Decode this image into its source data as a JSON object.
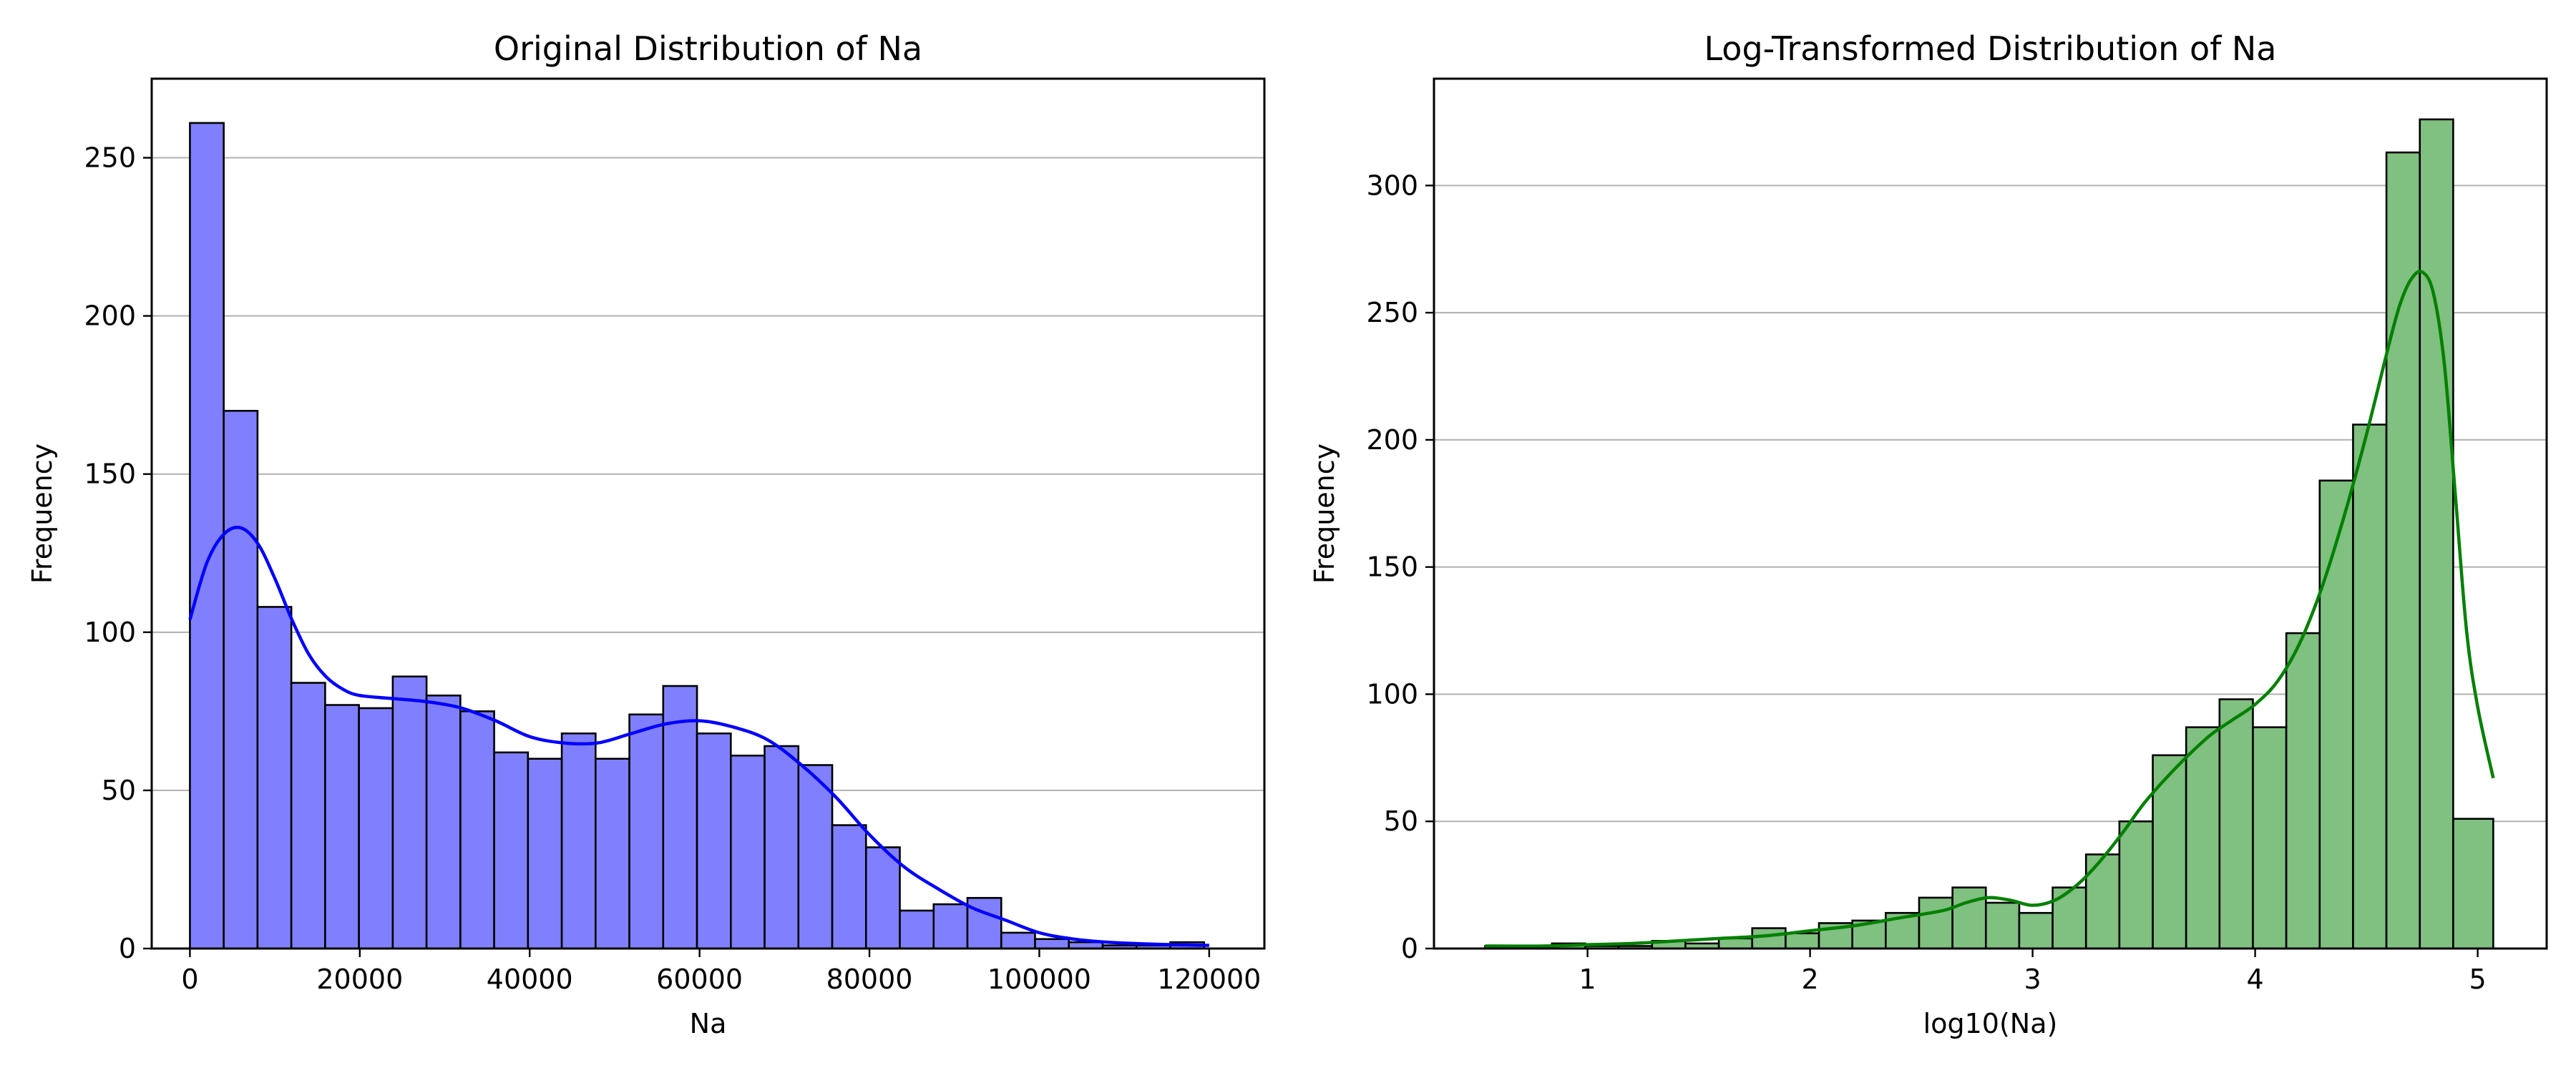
{
  "chart_data": [
    {
      "type": "bar",
      "title": "Original Distribution of Na",
      "xlabel": "Na",
      "ylabel": "Frequency",
      "xlim": [
        -4500,
        126500
      ],
      "ylim": [
        0,
        275
      ],
      "xticks": [
        0,
        20000,
        40000,
        60000,
        80000,
        100000,
        120000
      ],
      "yticks": [
        0,
        50,
        100,
        150,
        200,
        250
      ],
      "grid": "y",
      "bar_color": "#8080ff",
      "edge_color": "#000000",
      "kde_color": "#0000ff",
      "bins": [
        {
          "x0": 0,
          "x1": 3980,
          "count": 261
        },
        {
          "x0": 3980,
          "x1": 7960,
          "count": 170
        },
        {
          "x0": 7960,
          "x1": 11940,
          "count": 108
        },
        {
          "x0": 11940,
          "x1": 15920,
          "count": 84
        },
        {
          "x0": 15920,
          "x1": 19900,
          "count": 77
        },
        {
          "x0": 19900,
          "x1": 23880,
          "count": 76
        },
        {
          "x0": 23880,
          "x1": 27860,
          "count": 86
        },
        {
          "x0": 27860,
          "x1": 31840,
          "count": 80
        },
        {
          "x0": 31840,
          "x1": 35820,
          "count": 75
        },
        {
          "x0": 35820,
          "x1": 39800,
          "count": 62
        },
        {
          "x0": 39800,
          "x1": 43780,
          "count": 60
        },
        {
          "x0": 43780,
          "x1": 47760,
          "count": 68
        },
        {
          "x0": 47760,
          "x1": 51740,
          "count": 60
        },
        {
          "x0": 51740,
          "x1": 55720,
          "count": 74
        },
        {
          "x0": 55720,
          "x1": 59700,
          "count": 83
        },
        {
          "x0": 59700,
          "x1": 63680,
          "count": 68
        },
        {
          "x0": 63680,
          "x1": 67660,
          "count": 61
        },
        {
          "x0": 67660,
          "x1": 71640,
          "count": 64
        },
        {
          "x0": 71640,
          "x1": 75620,
          "count": 58
        },
        {
          "x0": 75620,
          "x1": 79600,
          "count": 39
        },
        {
          "x0": 79600,
          "x1": 83580,
          "count": 32
        },
        {
          "x0": 83580,
          "x1": 87560,
          "count": 12
        },
        {
          "x0": 87560,
          "x1": 91540,
          "count": 14
        },
        {
          "x0": 91540,
          "x1": 95520,
          "count": 16
        },
        {
          "x0": 95520,
          "x1": 99500,
          "count": 5
        },
        {
          "x0": 99500,
          "x1": 103480,
          "count": 3
        },
        {
          "x0": 103480,
          "x1": 107460,
          "count": 2
        },
        {
          "x0": 107460,
          "x1": 111440,
          "count": 1
        },
        {
          "x0": 111440,
          "x1": 115420,
          "count": 1
        },
        {
          "x0": 115420,
          "x1": 119400,
          "count": 2
        }
      ],
      "kde": {
        "x": [
          0,
          2000,
          4000,
          6000,
          8000,
          10000,
          12000,
          14000,
          16000,
          18000,
          20000,
          24000,
          28000,
          32000,
          36000,
          40000,
          44000,
          48000,
          52000,
          56000,
          60000,
          64000,
          68000,
          72000,
          76000,
          80000,
          84000,
          88000,
          92000,
          96000,
          100000,
          104000,
          108000,
          112000,
          116000,
          120000
        ],
        "y": [
          104,
          122,
          131,
          133,
          128,
          117,
          104,
          93,
          86,
          82,
          80,
          79,
          78,
          76,
          72,
          67,
          65,
          65,
          68,
          71,
          72,
          70,
          66,
          58,
          48,
          36,
          26,
          19,
          13,
          9,
          5,
          3,
          2,
          1.5,
          1.2,
          1
        ]
      }
    },
    {
      "type": "bar",
      "title": "Log-Transformed Distribution of Na",
      "xlabel": "log10(Na)",
      "ylabel": "Frequency",
      "xlim": [
        0.31,
        5.31
      ],
      "ylim": [
        0,
        342
      ],
      "xticks": [
        1,
        2,
        3,
        4,
        5
      ],
      "yticks": [
        0,
        50,
        100,
        150,
        200,
        250,
        300
      ],
      "grid": "y",
      "bar_color": "#80c080",
      "edge_color": "#000000",
      "kde_color": "#008000",
      "bins": [
        {
          "x0": 0.54,
          "x1": 0.69,
          "count": 1
        },
        {
          "x0": 0.69,
          "x1": 0.84,
          "count": 0
        },
        {
          "x0": 0.84,
          "x1": 0.99,
          "count": 2
        },
        {
          "x0": 0.99,
          "x1": 1.14,
          "count": 1
        },
        {
          "x0": 1.14,
          "x1": 1.29,
          "count": 1
        },
        {
          "x0": 1.29,
          "x1": 1.44,
          "count": 3
        },
        {
          "x0": 1.44,
          "x1": 1.59,
          "count": 2
        },
        {
          "x0": 1.59,
          "x1": 1.74,
          "count": 4
        },
        {
          "x0": 1.74,
          "x1": 1.89,
          "count": 8
        },
        {
          "x0": 1.89,
          "x1": 2.04,
          "count": 6
        },
        {
          "x0": 2.04,
          "x1": 2.19,
          "count": 10
        },
        {
          "x0": 2.19,
          "x1": 2.34,
          "count": 11
        },
        {
          "x0": 2.34,
          "x1": 2.49,
          "count": 14
        },
        {
          "x0": 2.49,
          "x1": 2.64,
          "count": 20
        },
        {
          "x0": 2.64,
          "x1": 2.79,
          "count": 24
        },
        {
          "x0": 2.79,
          "x1": 2.94,
          "count": 18
        },
        {
          "x0": 2.94,
          "x1": 3.09,
          "count": 14
        },
        {
          "x0": 3.09,
          "x1": 3.24,
          "count": 24
        },
        {
          "x0": 3.24,
          "x1": 3.39,
          "count": 37
        },
        {
          "x0": 3.39,
          "x1": 3.54,
          "count": 50
        },
        {
          "x0": 3.54,
          "x1": 3.69,
          "count": 76
        },
        {
          "x0": 3.69,
          "x1": 3.84,
          "count": 87
        },
        {
          "x0": 3.84,
          "x1": 3.99,
          "count": 98
        },
        {
          "x0": 3.99,
          "x1": 4.14,
          "count": 87
        },
        {
          "x0": 4.14,
          "x1": 4.29,
          "count": 124
        },
        {
          "x0": 4.29,
          "x1": 4.44,
          "count": 184
        },
        {
          "x0": 4.44,
          "x1": 4.59,
          "count": 206
        },
        {
          "x0": 4.59,
          "x1": 4.74,
          "count": 313
        },
        {
          "x0": 4.74,
          "x1": 4.89,
          "count": 326
        },
        {
          "x0": 4.89,
          "x1": 5.07,
          "count": 51
        }
      ],
      "kde": {
        "x": [
          0.54,
          0.8,
          1.0,
          1.2,
          1.4,
          1.6,
          1.8,
          2.0,
          2.2,
          2.4,
          2.6,
          2.7,
          2.8,
          2.9,
          3.0,
          3.1,
          3.2,
          3.3,
          3.4,
          3.5,
          3.6,
          3.7,
          3.8,
          3.9,
          4.0,
          4.1,
          4.2,
          4.3,
          4.4,
          4.5,
          4.6,
          4.65,
          4.7,
          4.75,
          4.8,
          4.85,
          4.9,
          4.95,
          5.0,
          5.07
        ],
        "y": [
          1,
          1,
          1.5,
          2,
          3,
          4,
          5,
          7,
          9,
          12,
          15,
          18,
          20,
          19,
          17,
          19,
          25,
          34,
          45,
          57,
          67,
          76,
          84,
          90,
          96,
          105,
          120,
          142,
          170,
          202,
          237,
          253,
          263,
          266,
          258,
          230,
          178,
          125,
          95,
          67
        ]
      }
    }
  ]
}
